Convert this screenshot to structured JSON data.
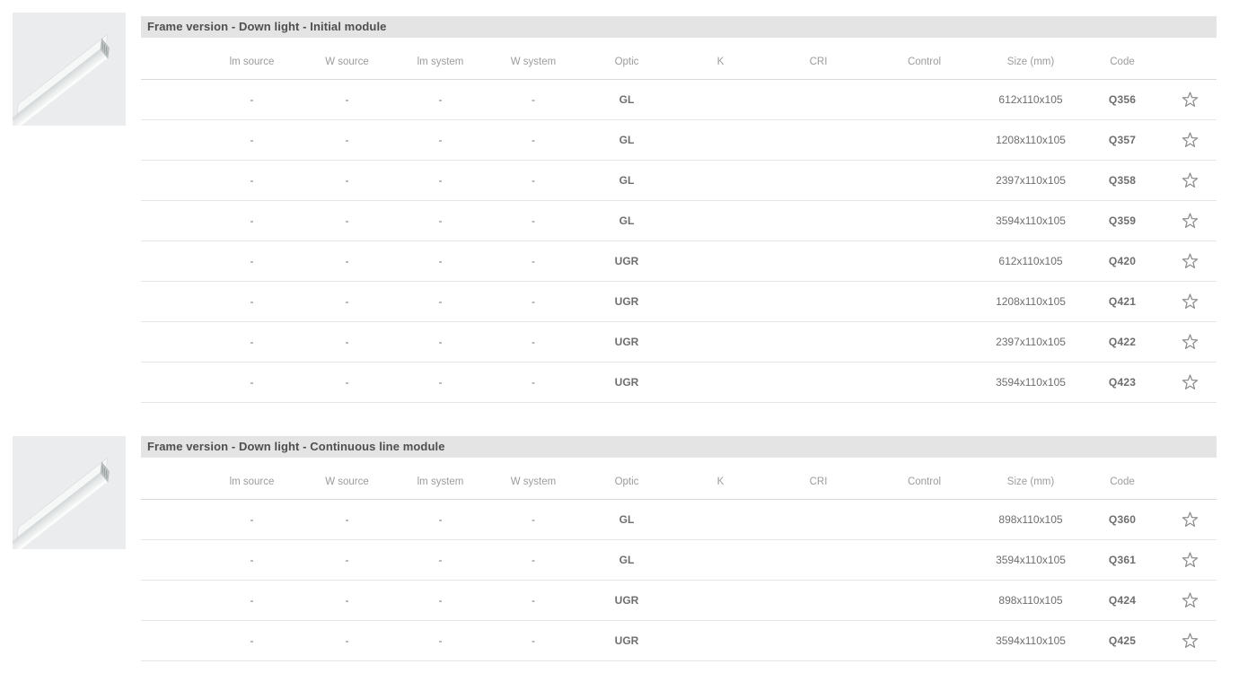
{
  "page": {
    "background": "#ffffff"
  },
  "colors": {
    "title_bar_bg": "#e4e4e4",
    "title_text": "#4f4f4f",
    "header_text": "#9c9c9c",
    "cell_text": "#6e6e6e",
    "code_text": "#4b4b4b",
    "row_line": "#e5e5e5",
    "star_stroke": "#8c8c8c",
    "thumbnail_bg": "#ebeced"
  },
  "icons": {
    "favorite": "star-outline-icon",
    "thumbnail": "linear-profile-luminaire-image"
  },
  "sections": [
    {
      "title": "Frame version - Down light - Initial module",
      "columns": [
        {
          "key": "lm-source",
          "label": "lm source"
        },
        {
          "key": "w-source",
          "label": "W source"
        },
        {
          "key": "lm-system",
          "label": "lm system"
        },
        {
          "key": "w-system",
          "label": "W system"
        },
        {
          "key": "optic",
          "label": "Optic"
        },
        {
          "key": "k",
          "label": "K"
        },
        {
          "key": "cri",
          "label": "CRI"
        },
        {
          "key": "control",
          "label": "Control"
        },
        {
          "key": "size",
          "label": "Size (mm)"
        },
        {
          "key": "code",
          "label": "Code"
        }
      ],
      "rows": [
        [
          "-",
          "-",
          "-",
          "-",
          "GL",
          "",
          "",
          "",
          "612x110x105",
          "Q356"
        ],
        [
          "-",
          "-",
          "-",
          "-",
          "GL",
          "",
          "",
          "",
          "1208x110x105",
          "Q357"
        ],
        [
          "-",
          "-",
          "-",
          "-",
          "GL",
          "",
          "",
          "",
          "2397x110x105",
          "Q358"
        ],
        [
          "-",
          "-",
          "-",
          "-",
          "GL",
          "",
          "",
          "",
          "3594x110x105",
          "Q359"
        ],
        [
          "-",
          "-",
          "-",
          "-",
          "UGR",
          "",
          "",
          "",
          "612x110x105",
          "Q420"
        ],
        [
          "-",
          "-",
          "-",
          "-",
          "UGR",
          "",
          "",
          "",
          "1208x110x105",
          "Q421"
        ],
        [
          "-",
          "-",
          "-",
          "-",
          "UGR",
          "",
          "",
          "",
          "2397x110x105",
          "Q422"
        ],
        [
          "-",
          "-",
          "-",
          "-",
          "UGR",
          "",
          "",
          "",
          "3594x110x105",
          "Q423"
        ]
      ]
    },
    {
      "title": "Frame version - Down light - Continuous line module",
      "columns": [
        {
          "key": "lm-source",
          "label": "lm source"
        },
        {
          "key": "w-source",
          "label": "W source"
        },
        {
          "key": "lm-system",
          "label": "lm system"
        },
        {
          "key": "w-system",
          "label": "W system"
        },
        {
          "key": "optic",
          "label": "Optic"
        },
        {
          "key": "k",
          "label": "K"
        },
        {
          "key": "cri",
          "label": "CRI"
        },
        {
          "key": "control",
          "label": "Control"
        },
        {
          "key": "size",
          "label": "Size (mm)"
        },
        {
          "key": "code",
          "label": "Code"
        }
      ],
      "rows": [
        [
          "-",
          "-",
          "-",
          "-",
          "GL",
          "",
          "",
          "",
          "898x110x105",
          "Q360"
        ],
        [
          "-",
          "-",
          "-",
          "-",
          "GL",
          "",
          "",
          "",
          "3594x110x105",
          "Q361"
        ],
        [
          "-",
          "-",
          "-",
          "-",
          "UGR",
          "",
          "",
          "",
          "898x110x105",
          "Q424"
        ],
        [
          "-",
          "-",
          "-",
          "-",
          "UGR",
          "",
          "",
          "",
          "3594x110x105",
          "Q425"
        ]
      ]
    }
  ]
}
